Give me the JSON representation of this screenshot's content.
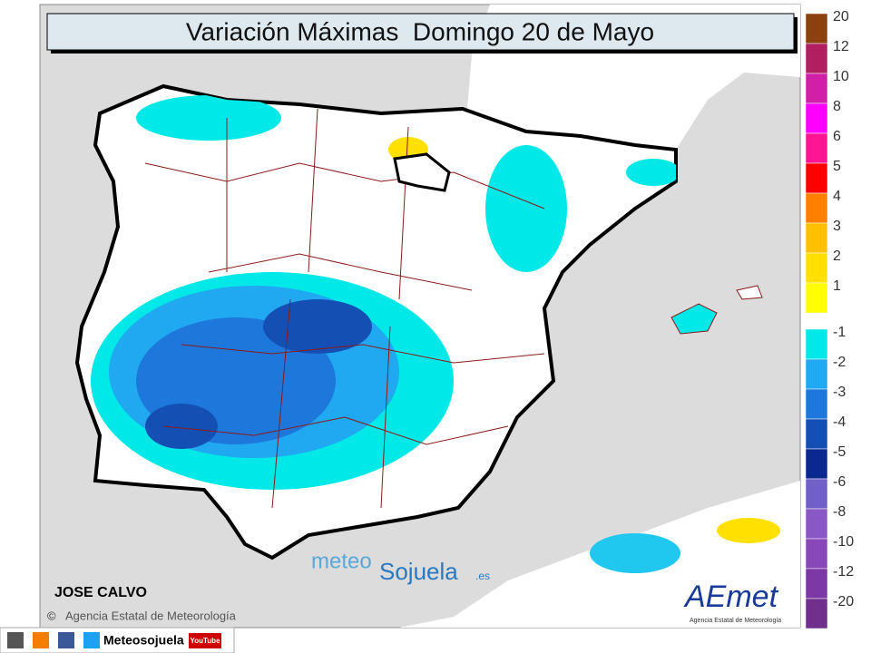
{
  "title": "Variación Máximas  Domingo 20 de Mayo",
  "legend": {
    "positive": [
      {
        "label": "20",
        "color": "#8b4010"
      },
      {
        "label": "12",
        "color": "#b02060"
      },
      {
        "label": "10",
        "color": "#d020a8"
      },
      {
        "label": "8",
        "color": "#ff00ff"
      },
      {
        "label": "6",
        "color": "#ff1493"
      },
      {
        "label": "5",
        "color": "#ff0000"
      },
      {
        "label": "4",
        "color": "#ff7f00"
      },
      {
        "label": "3",
        "color": "#ffc000"
      },
      {
        "label": "2",
        "color": "#ffe000"
      },
      {
        "label": "1",
        "color": "#ffff00"
      }
    ],
    "negative": [
      {
        "label": "-1",
        "color": "#00e8e8"
      },
      {
        "label": "-2",
        "color": "#20a8f0"
      },
      {
        "label": "-3",
        "color": "#1e78dc"
      },
      {
        "label": "-4",
        "color": "#1450b4"
      },
      {
        "label": "-5",
        "color": "#0a2890"
      },
      {
        "label": "-6",
        "color": "#7060c8"
      },
      {
        "label": "-8",
        "color": "#8a58c4"
      },
      {
        "label": "-10",
        "color": "#8848b8"
      },
      {
        "label": "-12",
        "color": "#7c38a4"
      },
      {
        "label": "-20",
        "color": "#70308c"
      }
    ]
  },
  "author": "JOSE CALVO",
  "credit": "Agencia Estatal de Meteorología",
  "watermark": {
    "meteo": "meteo",
    "sojuela": "Sojuela",
    "tld": ".es"
  },
  "logo": {
    "name": "AEmet",
    "subtitle": "Agencia Estatal de Meteorología"
  },
  "footer": {
    "handle": "Meteosojuela",
    "youtube": "YouTube"
  }
}
